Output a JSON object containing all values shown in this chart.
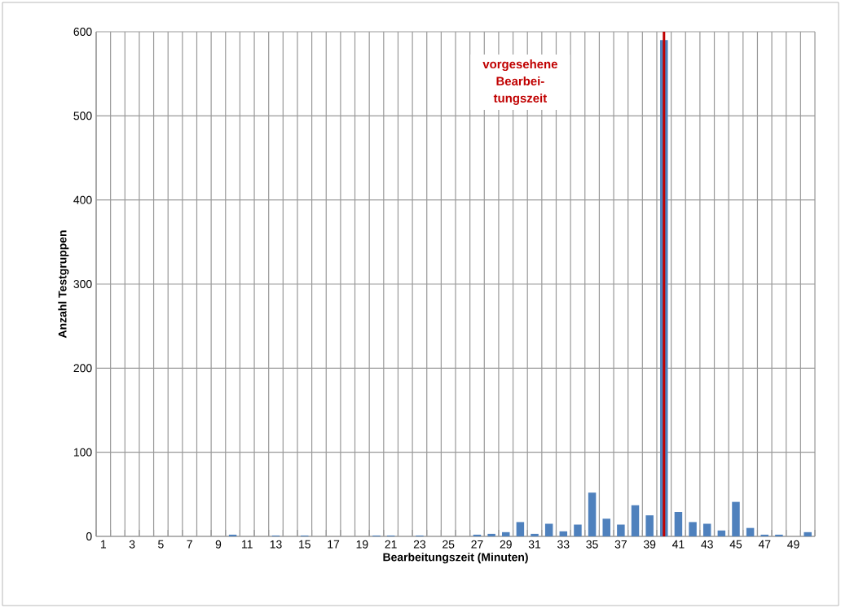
{
  "chart_data": {
    "type": "bar",
    "xlabel": "Bearbeitungszeit (Minuten)",
    "ylabel": "Anzahl Testgruppen",
    "x": [
      1,
      2,
      3,
      4,
      5,
      6,
      7,
      8,
      9,
      10,
      11,
      12,
      13,
      14,
      15,
      16,
      17,
      18,
      19,
      20,
      21,
      22,
      23,
      24,
      25,
      26,
      27,
      28,
      29,
      30,
      31,
      32,
      33,
      34,
      35,
      36,
      37,
      38,
      39,
      40,
      41,
      42,
      43,
      44,
      45,
      46,
      47,
      48,
      49,
      50
    ],
    "values": [
      0,
      0,
      0,
      0,
      0,
      0,
      0,
      0,
      0,
      2,
      0,
      0,
      1,
      0,
      1,
      0,
      0,
      0,
      0,
      1,
      1,
      0,
      1,
      0,
      0,
      0,
      2,
      3,
      5,
      17,
      3,
      15,
      6,
      14,
      52,
      21,
      14,
      37,
      25,
      590,
      29,
      17,
      15,
      7,
      41,
      10,
      2,
      2,
      0,
      5
    ],
    "color": "#4f81bd",
    "xlim": [
      0.5,
      50.5
    ],
    "xticks": [
      1,
      3,
      5,
      7,
      9,
      11,
      13,
      15,
      17,
      19,
      21,
      23,
      25,
      27,
      29,
      31,
      33,
      35,
      37,
      39,
      41,
      43,
      45,
      47,
      49
    ],
    "ylim": [
      0,
      600
    ],
    "yticks": [
      0,
      100,
      200,
      300,
      400,
      500,
      600
    ],
    "grid": true,
    "ref_lines": [
      {
        "axis": "x",
        "value": 40,
        "label": "vorgesehene Bearbei-tungszeit",
        "color": "#c00000"
      }
    ]
  }
}
